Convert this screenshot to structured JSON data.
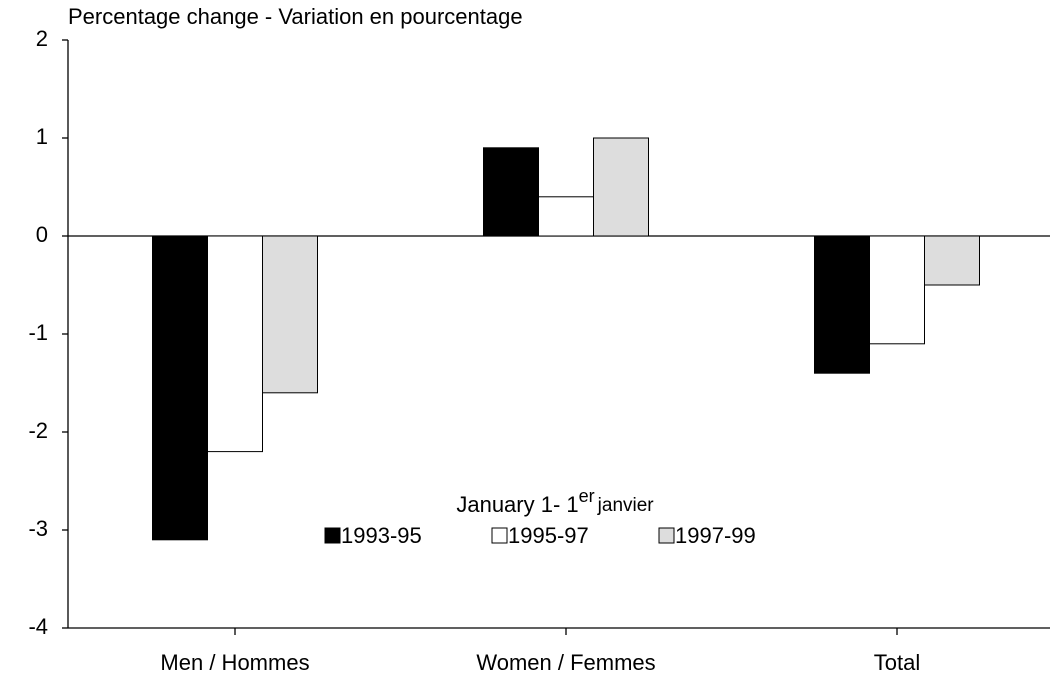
{
  "chart_data": {
    "type": "bar",
    "y_axis_label": "Percentage change - Variation en pourcentage",
    "categories": [
      "Men / Hommes",
      "Women / Femmes",
      "Total"
    ],
    "series": [
      {
        "name": "1993-95",
        "color": "#000000",
        "values": [
          -3.1,
          0.9,
          -1.4
        ]
      },
      {
        "name": "1995-97",
        "color": "#ffffff",
        "values": [
          -2.2,
          0.4,
          -1.1
        ]
      },
      {
        "name": "1997-99",
        "color": "#dddddd",
        "values": [
          -1.6,
          1.0,
          -0.5
        ]
      }
    ],
    "legend_title": {
      "text": "January 1- 1",
      "superscript": "er",
      "suffix": "janvier"
    },
    "ylim": [
      -4,
      2
    ],
    "yticks": [
      -4,
      -3,
      -2,
      -1,
      0,
      1,
      2
    ],
    "grid": false
  }
}
